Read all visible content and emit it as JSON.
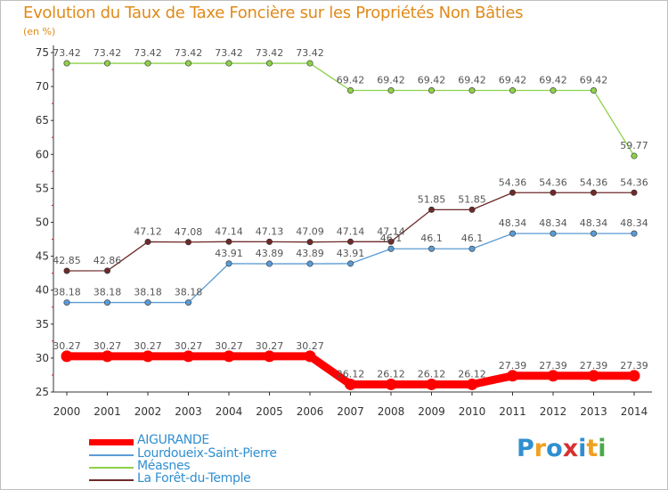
{
  "title": "Evolution du Taux de Taxe Foncière sur les Propriétés Non Bâties",
  "unit_label": "(en %)",
  "logo": {
    "letters": [
      "P",
      "r",
      "o",
      "x",
      "i",
      "t",
      "i"
    ],
    "colors": [
      "#2f8fd0",
      "#f0a020",
      "#2f8fd0",
      "#d93030",
      "#2f8fd0",
      "#f0a020",
      "#4aa84a"
    ]
  },
  "chart_data": {
    "type": "line",
    "title": "Evolution du Taux de Taxe Foncière sur les Propriétés Non Bâties",
    "ylabel": "(en %)",
    "xlabel": "",
    "ylim": [
      25,
      75
    ],
    "yticks": [
      25,
      30,
      35,
      40,
      45,
      50,
      55,
      60,
      65,
      70,
      75
    ],
    "categories": [
      "2000",
      "2001",
      "2002",
      "2003",
      "2004",
      "2005",
      "2006",
      "2007",
      "2008",
      "2009",
      "2010",
      "2011",
      "2012",
      "2013",
      "2014"
    ],
    "series": [
      {
        "name": "AIGURANDE",
        "color": "#ff0000",
        "labels": [
          "30.27",
          "30.27",
          "30.27",
          "30.27",
          "30.27",
          "30.27",
          "30.27",
          "26.12",
          "26.12",
          "26.12",
          "26.12",
          "27.39",
          "27.39",
          "27.39",
          "27.39"
        ],
        "values": [
          30.27,
          30.27,
          30.27,
          30.27,
          30.27,
          30.27,
          30.27,
          26.12,
          26.12,
          26.12,
          26.12,
          27.39,
          27.39,
          27.39,
          27.39
        ]
      },
      {
        "name": "Lourdoueix-Saint-Pierre",
        "color": "#5b9bd5",
        "labels": [
          "38.18",
          "38.18",
          "38.18",
          "38.18",
          "43.91",
          "43.89",
          "43.89",
          "43.91",
          "46.1",
          "46.1",
          "46.1",
          "48.34",
          "48.34",
          "48.34",
          "48.34"
        ],
        "values": [
          38.18,
          38.18,
          38.18,
          38.18,
          43.91,
          43.89,
          43.89,
          43.91,
          46.1,
          46.1,
          46.1,
          48.34,
          48.34,
          48.34,
          48.34
        ]
      },
      {
        "name": "Méasnes",
        "color": "#8ed14a",
        "labels": [
          "73.42",
          "73.42",
          "73.42",
          "73.42",
          "73.42",
          "73.42",
          "73.42",
          "69.42",
          "69.42",
          "69.42",
          "69.42",
          "69.42",
          "69.42",
          "69.42",
          "59.77"
        ],
        "values": [
          73.42,
          73.42,
          73.42,
          73.42,
          73.42,
          73.42,
          73.42,
          69.42,
          69.42,
          69.42,
          69.42,
          69.42,
          69.42,
          69.42,
          59.77
        ]
      },
      {
        "name": "La Forêt-du-Temple",
        "color": "#6e2a2a",
        "labels": [
          "42.85",
          "42.86",
          "47.12",
          "47.08",
          "47.14",
          "47.13",
          "47.09",
          "47.14",
          "47.14",
          "51.85",
          "51.85",
          "54.36",
          "54.36",
          "54.36",
          "54.36"
        ],
        "values": [
          42.85,
          42.86,
          47.12,
          47.08,
          47.14,
          47.13,
          47.09,
          47.14,
          47.14,
          51.85,
          51.85,
          54.36,
          54.36,
          54.36,
          54.36
        ]
      }
    ]
  }
}
